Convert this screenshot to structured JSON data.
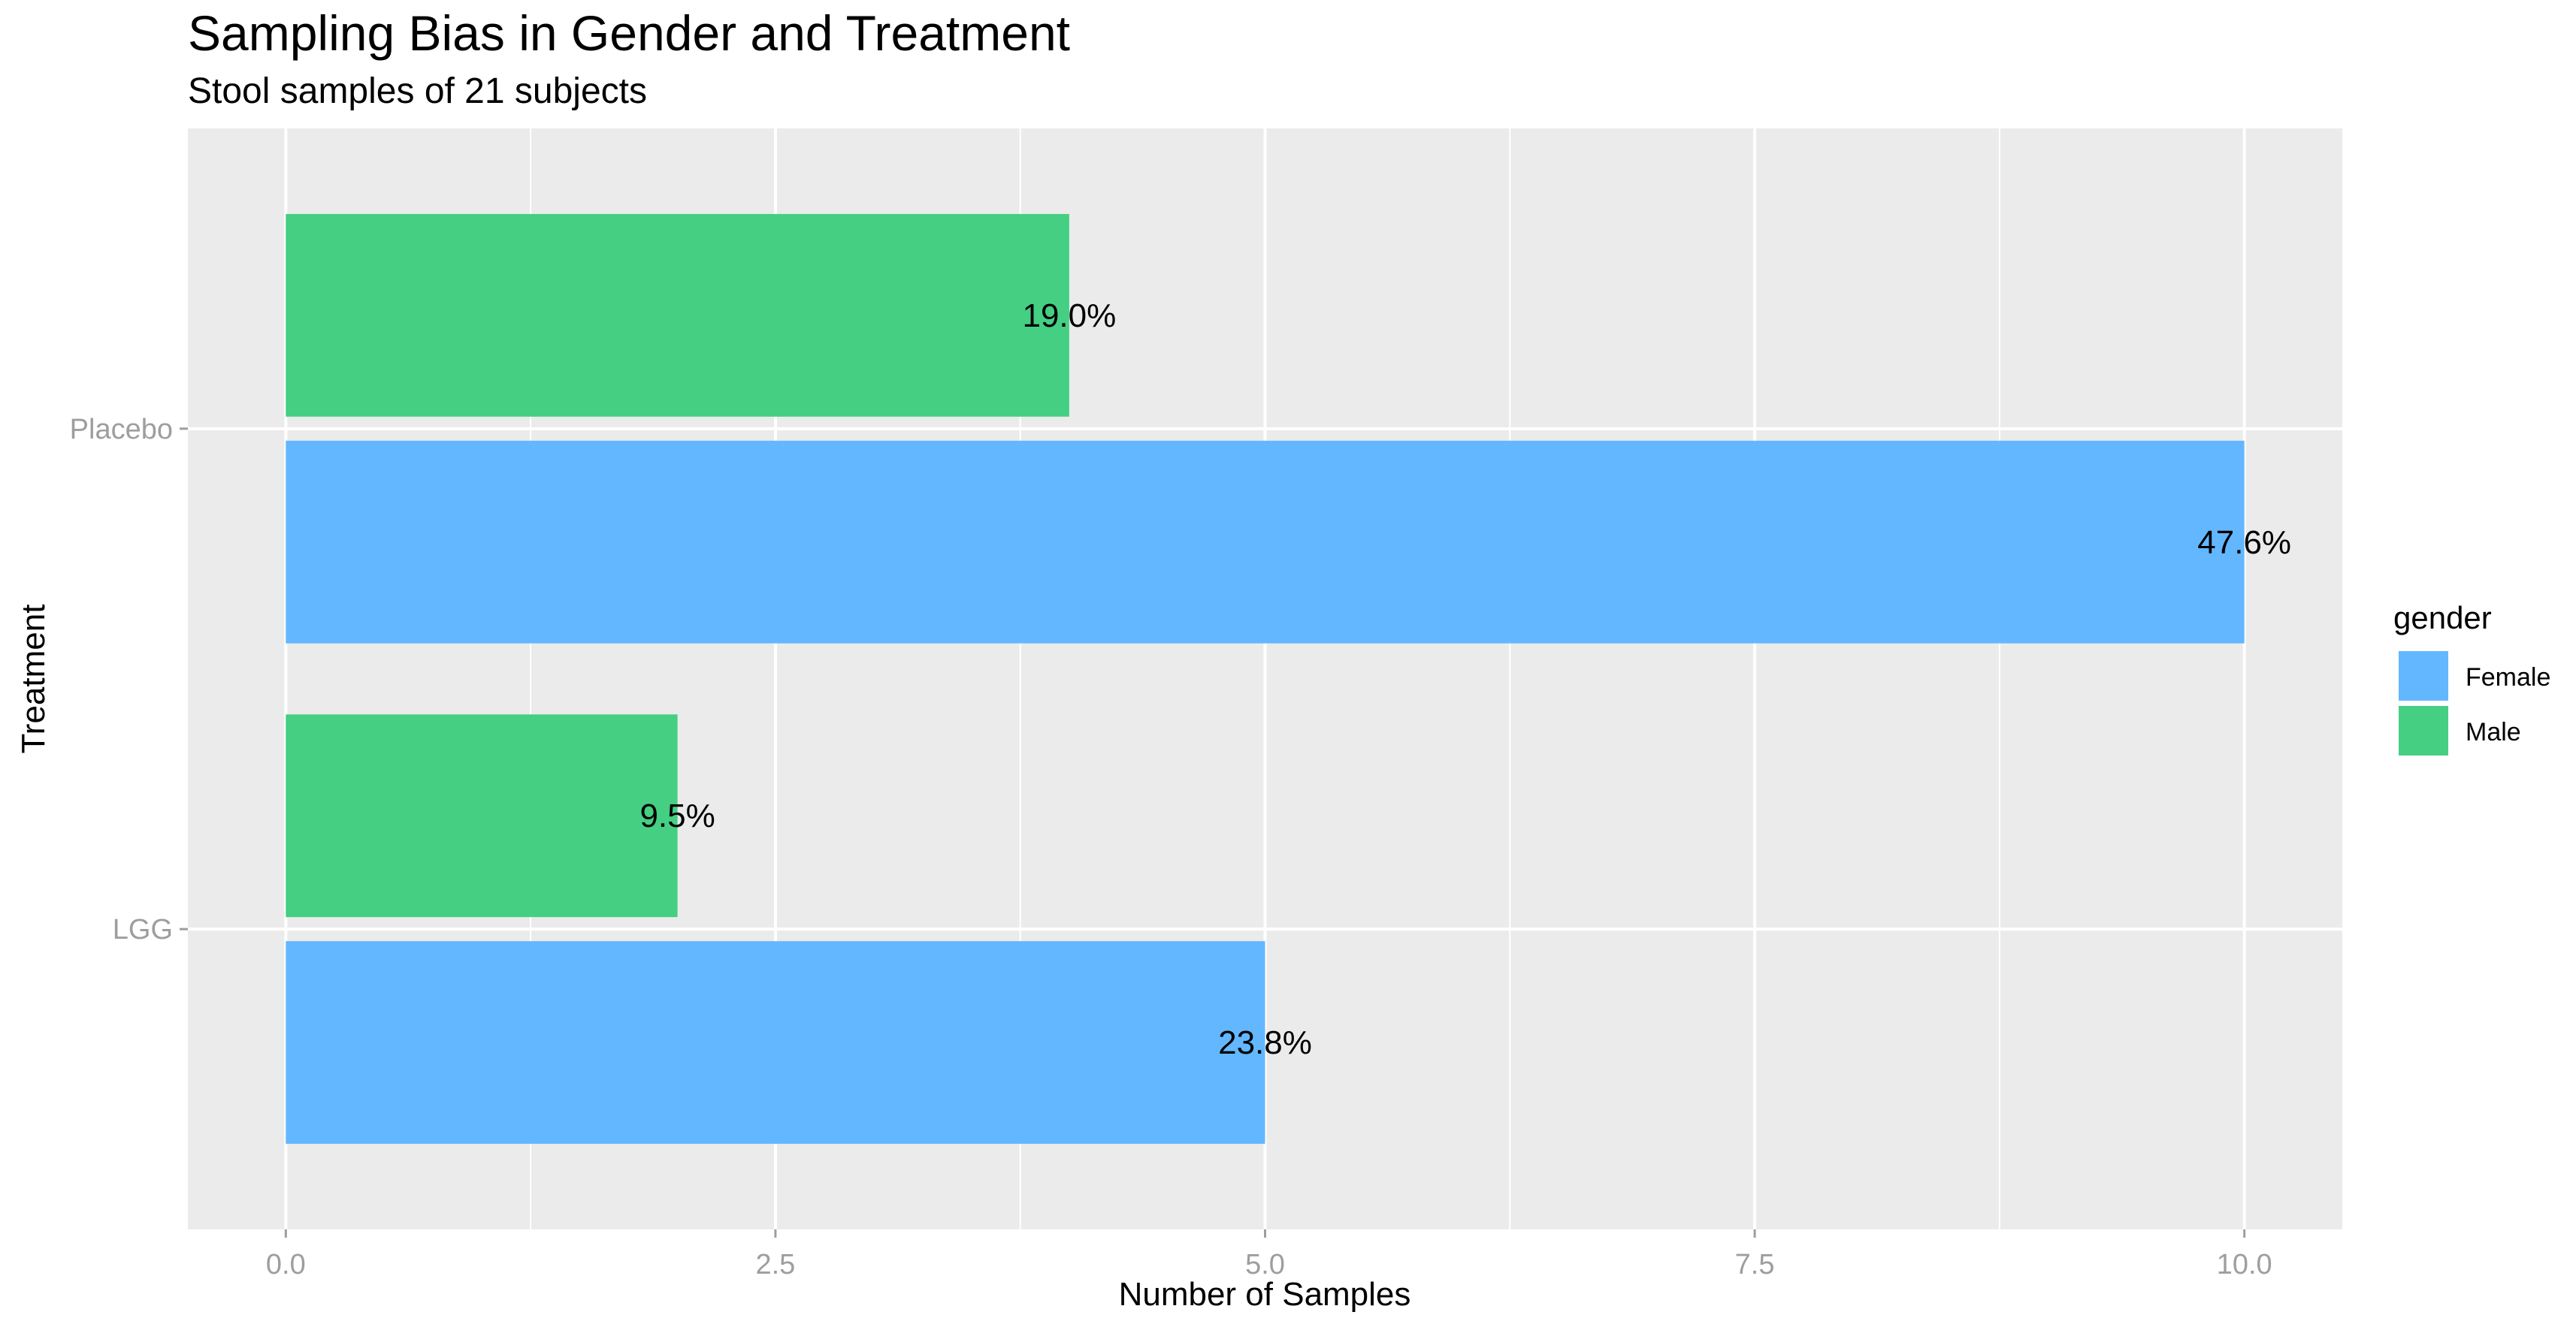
{
  "chart_data": {
    "type": "bar",
    "orientation": "horizontal",
    "title": "Sampling Bias in Gender and Treatment",
    "subtitle": "Stool samples of 21 subjects",
    "xlabel": "Number of Samples",
    "ylabel": "Treatment",
    "categories": [
      "LGG",
      "Placebo"
    ],
    "xlim": [
      -0.5,
      10.5
    ],
    "x_ticks": [
      "0.0",
      "2.5",
      "5.0",
      "7.5",
      "10.0"
    ],
    "grid": true,
    "legend": {
      "title": "gender",
      "position": "right"
    },
    "series": [
      {
        "name": "Female",
        "color": "#63B7FF",
        "values": [
          5,
          10
        ],
        "labels": [
          "23.8%",
          "47.6%"
        ]
      },
      {
        "name": "Male",
        "color": "#44CF83",
        "values": [
          2,
          4
        ],
        "labels": [
          "9.5%",
          "19.0%"
        ]
      }
    ]
  }
}
